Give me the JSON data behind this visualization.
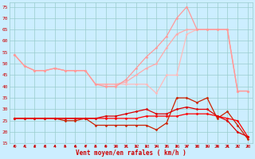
{
  "x": [
    0,
    1,
    2,
    3,
    4,
    5,
    6,
    7,
    8,
    9,
    10,
    11,
    12,
    13,
    14,
    15,
    16,
    17,
    18,
    19,
    20,
    21,
    22,
    23
  ],
  "series": [
    {
      "color": "#ffbbbb",
      "linewidth": 0.9,
      "marker": "D",
      "markersize": 1.5,
      "values": [
        54,
        49,
        47,
        47,
        48,
        47,
        47,
        47,
        41,
        41,
        41,
        41,
        41,
        41,
        37,
        45,
        45,
        63,
        65,
        65,
        65,
        65,
        38,
        38
      ]
    },
    {
      "color": "#ffaaaa",
      "linewidth": 0.9,
      "marker": "D",
      "markersize": 1.5,
      "values": [
        54,
        49,
        47,
        47,
        48,
        47,
        47,
        47,
        41,
        41,
        41,
        42,
        45,
        48,
        50,
        57,
        63,
        65,
        65,
        65,
        65,
        65,
        38,
        38
      ]
    },
    {
      "color": "#ff9999",
      "linewidth": 0.9,
      "marker": "D",
      "markersize": 1.5,
      "values": [
        54,
        49,
        47,
        47,
        48,
        47,
        47,
        47,
        41,
        40,
        40,
        43,
        48,
        53,
        57,
        62,
        70,
        75,
        65,
        65,
        65,
        65,
        38,
        38
      ]
    },
    {
      "color": "#cc2200",
      "linewidth": 0.9,
      "marker": "D",
      "markersize": 1.5,
      "values": [
        26,
        26,
        26,
        26,
        26,
        25,
        25,
        26,
        23,
        23,
        23,
        23,
        23,
        23,
        21,
        24,
        35,
        35,
        33,
        35,
        26,
        29,
        23,
        17
      ]
    },
    {
      "color": "#ff0000",
      "linewidth": 0.9,
      "marker": "D",
      "markersize": 1.5,
      "values": [
        26,
        26,
        26,
        26,
        26,
        26,
        26,
        26,
        26,
        26,
        26,
        26,
        26,
        27,
        27,
        27,
        27,
        28,
        28,
        28,
        27,
        26,
        25,
        18
      ]
    },
    {
      "color": "#dd0000",
      "linewidth": 0.9,
      "marker": "D",
      "markersize": 1.5,
      "values": [
        26,
        26,
        26,
        26,
        26,
        26,
        26,
        26,
        26,
        27,
        27,
        28,
        29,
        30,
        28,
        28,
        30,
        31,
        30,
        30,
        27,
        25,
        20,
        18
      ]
    }
  ],
  "xlabel": "Vent moyen/en rafales ( km/h )",
  "xlim_min": -0.5,
  "xlim_max": 23.5,
  "ylim_min": 15,
  "ylim_max": 77,
  "yticks": [
    15,
    20,
    25,
    30,
    35,
    40,
    45,
    50,
    55,
    60,
    65,
    70,
    75
  ],
  "xticks": [
    0,
    1,
    2,
    3,
    4,
    5,
    6,
    7,
    8,
    9,
    10,
    11,
    12,
    13,
    14,
    15,
    16,
    17,
    18,
    19,
    20,
    21,
    22,
    23
  ],
  "bg_color": "#cceeff",
  "grid_color": "#99cccc",
  "tick_color": "#cc0000",
  "xlabel_color": "#cc0000",
  "tick_fontsize": 4.5,
  "xlabel_fontsize": 5.5
}
